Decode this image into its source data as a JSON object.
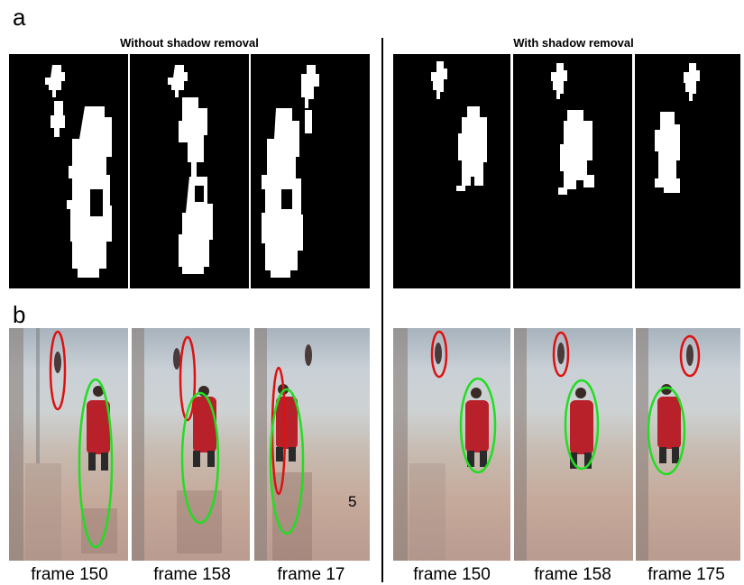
{
  "figure": {
    "label_a": "a",
    "label_b": "b",
    "group_left_title": "Without shadow removal",
    "group_right_title": "With shadow removal",
    "captions_left": [
      "frame 150",
      "frame 158",
      "frame 17"
    ],
    "captions_right": [
      "frame 150",
      "frame 158",
      "frame 175"
    ],
    "stray_text": "5"
  },
  "colors": {
    "mask_bg": "#000000",
    "silhouette": "#ffffff",
    "ellipse_person": "#22dd22",
    "ellipse_far_person": "#dd1111",
    "coat": "#b8202a"
  }
}
